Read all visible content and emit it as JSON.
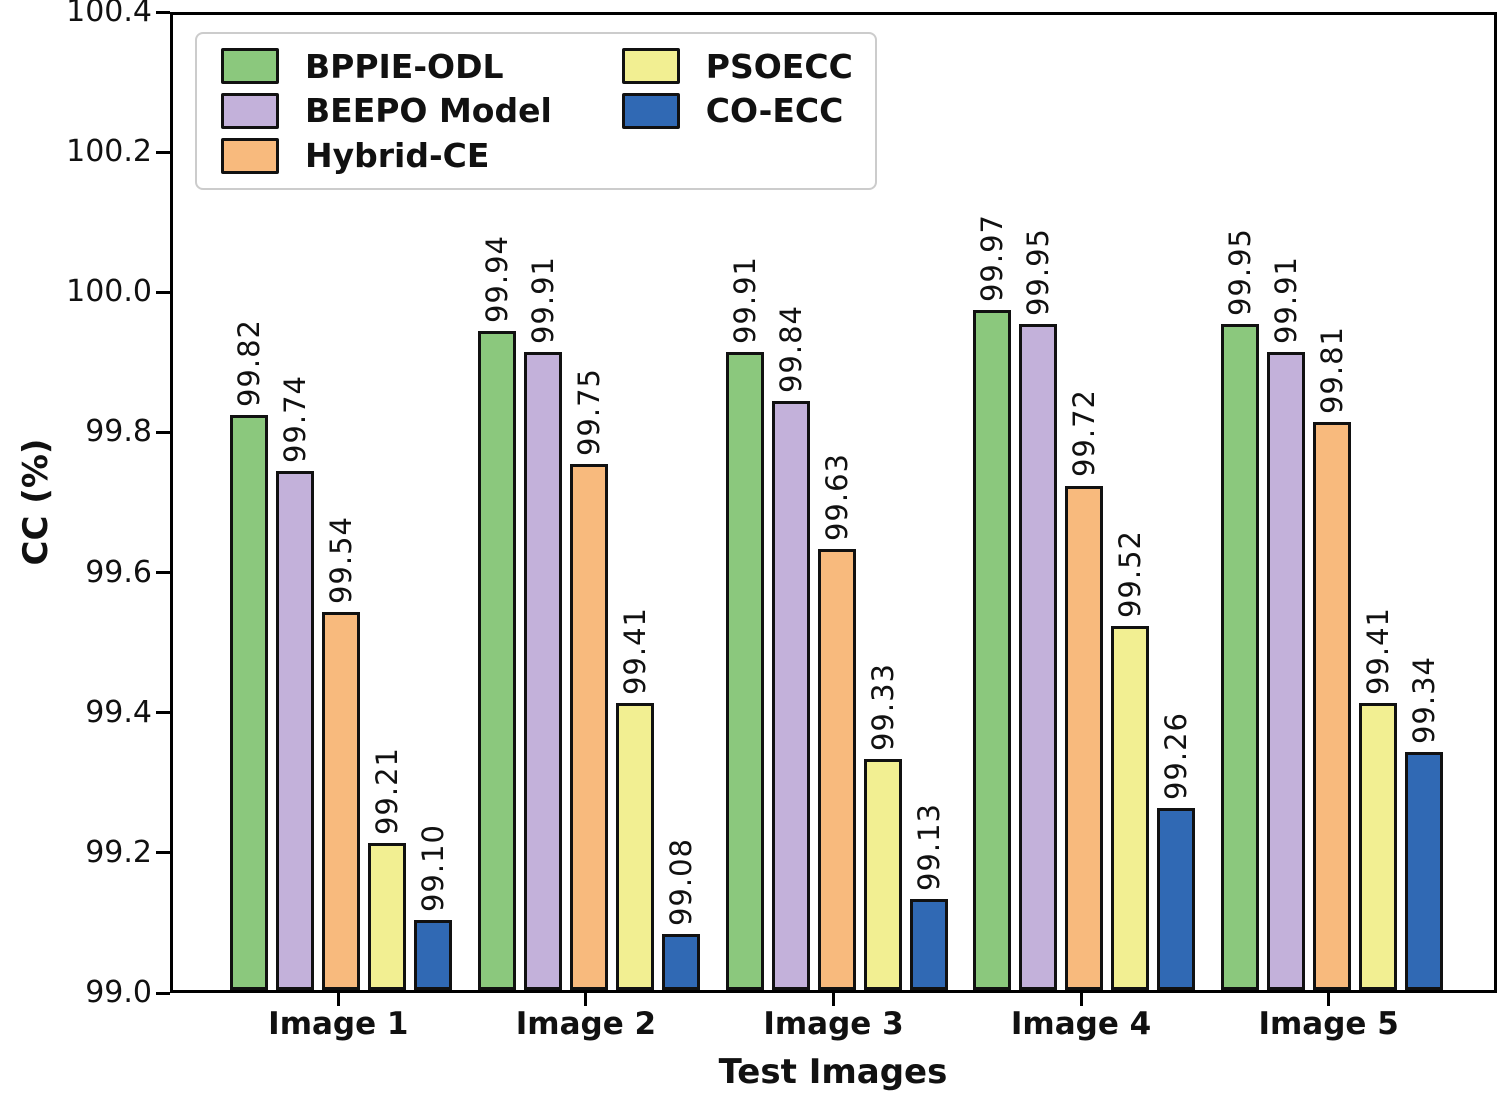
{
  "chart_data": {
    "type": "bar",
    "title": "",
    "xlabel": "Test Images",
    "ylabel": "CC (%)",
    "categories": [
      "Image 1",
      "Image 2",
      "Image 3",
      "Image 4",
      "Image 5"
    ],
    "series": [
      {
        "name": "BPPIE-ODL",
        "color": "#8BC87D",
        "values": [
          99.82,
          99.94,
          99.91,
          99.97,
          99.95
        ]
      },
      {
        "name": "BEEPO Model",
        "color": "#C3B1DA",
        "values": [
          99.74,
          99.91,
          99.84,
          99.95,
          99.91
        ]
      },
      {
        "name": "Hybrid-CE",
        "color": "#F8BA7D",
        "values": [
          99.54,
          99.75,
          99.63,
          99.72,
          99.81
        ]
      },
      {
        "name": "PSOECC",
        "color": "#F2EF92",
        "values": [
          99.21,
          99.41,
          99.33,
          99.52,
          99.41
        ]
      },
      {
        "name": "CO-ECC",
        "color": "#3069B4",
        "values": [
          99.1,
          99.08,
          99.13,
          99.26,
          99.34
        ]
      }
    ],
    "ylim": [
      99.0,
      100.4
    ],
    "y_ticks": [
      "99.0",
      "99.2",
      "99.4",
      "99.6",
      "99.8",
      "100.0",
      "100.2",
      "100.4"
    ],
    "bar_edge_color": "#111111",
    "value_label_rotation": 90,
    "value_label_decimals": 2,
    "legend_position": "upper left",
    "legend_columns": 2,
    "grid": false
  }
}
